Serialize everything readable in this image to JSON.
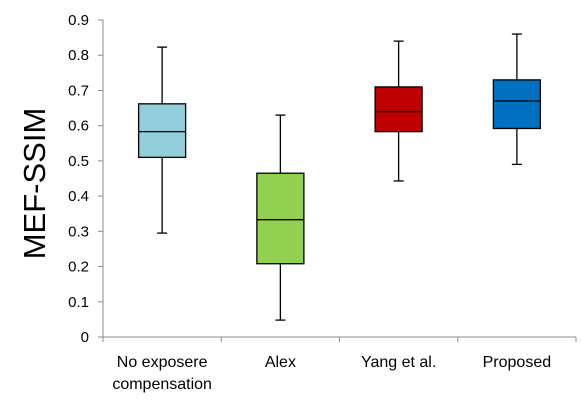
{
  "chart_data": {
    "type": "boxplot",
    "title": "",
    "xlabel": "",
    "ylabel": "MEF-SSIM",
    "ylim": [
      0,
      0.9
    ],
    "yticks": [
      "0",
      "0.1",
      "0.2",
      "0.3",
      "0.4",
      "0.5",
      "0.6",
      "0.7",
      "0.8",
      "0.9"
    ],
    "grid": false,
    "categories": [
      {
        "label_lines": [
          "No exposere",
          "compensation"
        ],
        "color": "#92CDDC",
        "min": 0.295,
        "q1": 0.51,
        "median": 0.583,
        "q3": 0.662,
        "max": 0.823
      },
      {
        "label_lines": [
          "Alex"
        ],
        "color": "#92D050",
        "min": 0.048,
        "q1": 0.208,
        "median": 0.333,
        "q3": 0.465,
        "max": 0.63
      },
      {
        "label_lines": [
          "Yang et al."
        ],
        "color": "#C00000",
        "min": 0.443,
        "q1": 0.583,
        "median": 0.64,
        "q3": 0.71,
        "max": 0.84
      },
      {
        "label_lines": [
          "Proposed"
        ],
        "color": "#0070C0",
        "min": 0.49,
        "q1": 0.592,
        "median": 0.67,
        "q3": 0.73,
        "max": 0.86
      }
    ]
  }
}
